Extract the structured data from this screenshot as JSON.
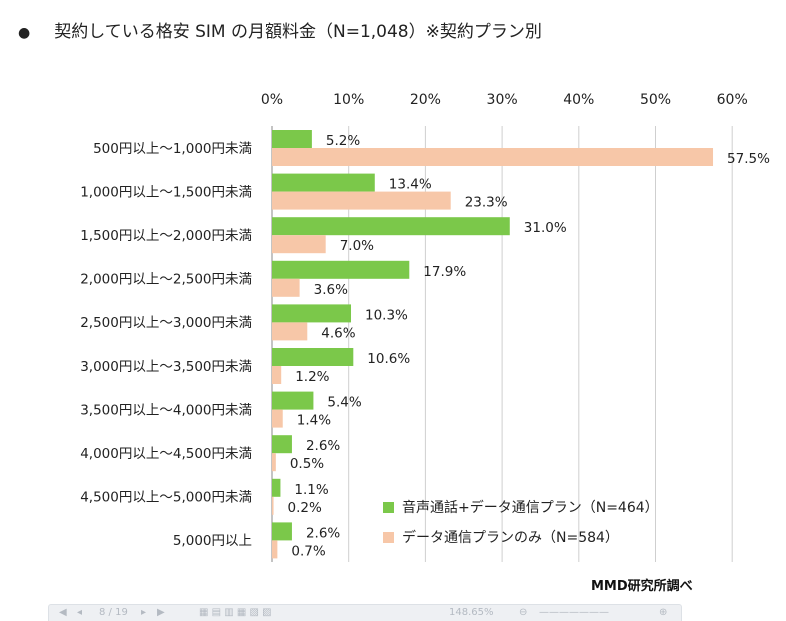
{
  "title": {
    "bullet": "●",
    "text": "契約している格安 SIM の月額料金（N=1,048）※契約プラン別"
  },
  "chart_data": {
    "type": "bar",
    "orientation": "horizontal",
    "title": "契約している格安 SIM の月額料金（N=1,048）※契約プラン別",
    "categories": [
      "500円以上～1,000円未満",
      "1,000円以上～1,500円未満",
      "1,500円以上～2,000円未満",
      "2,000円以上～2,500円未満",
      "2,500円以上～3,000円未満",
      "3,000円以上～3,500円未満",
      "3,500円以上～4,000円未満",
      "4,000円以上～4,500円未満",
      "4,500円以上～5,000円未満",
      "5,000円以上"
    ],
    "series": [
      {
        "name": "音声通話+データ通信プラン（N=464）",
        "color": "#7bc84a",
        "values": [
          5.2,
          13.4,
          31.0,
          17.9,
          10.3,
          10.6,
          5.4,
          2.6,
          1.1,
          2.6
        ]
      },
      {
        "name": "データ通信プランのみ（N=584）",
        "color": "#f7c7a8",
        "values": [
          57.5,
          23.3,
          7.0,
          3.6,
          4.6,
          1.2,
          1.4,
          0.5,
          0.2,
          0.7
        ]
      }
    ],
    "value_suffix": "%",
    "xlim": [
      0,
      60
    ],
    "x_ticks": [
      0,
      10,
      20,
      30,
      40,
      50,
      60
    ],
    "x_tick_labels": [
      "0%",
      "10%",
      "20%",
      "30%",
      "40%",
      "50%",
      "60%"
    ],
    "x_axis_position": "top",
    "grid": true,
    "legend_position": "bottom-right"
  },
  "source": "MMD研究所調べ",
  "toolbar": {
    "page_indicator": "8 / 19",
    "zoom": "148.65%"
  }
}
